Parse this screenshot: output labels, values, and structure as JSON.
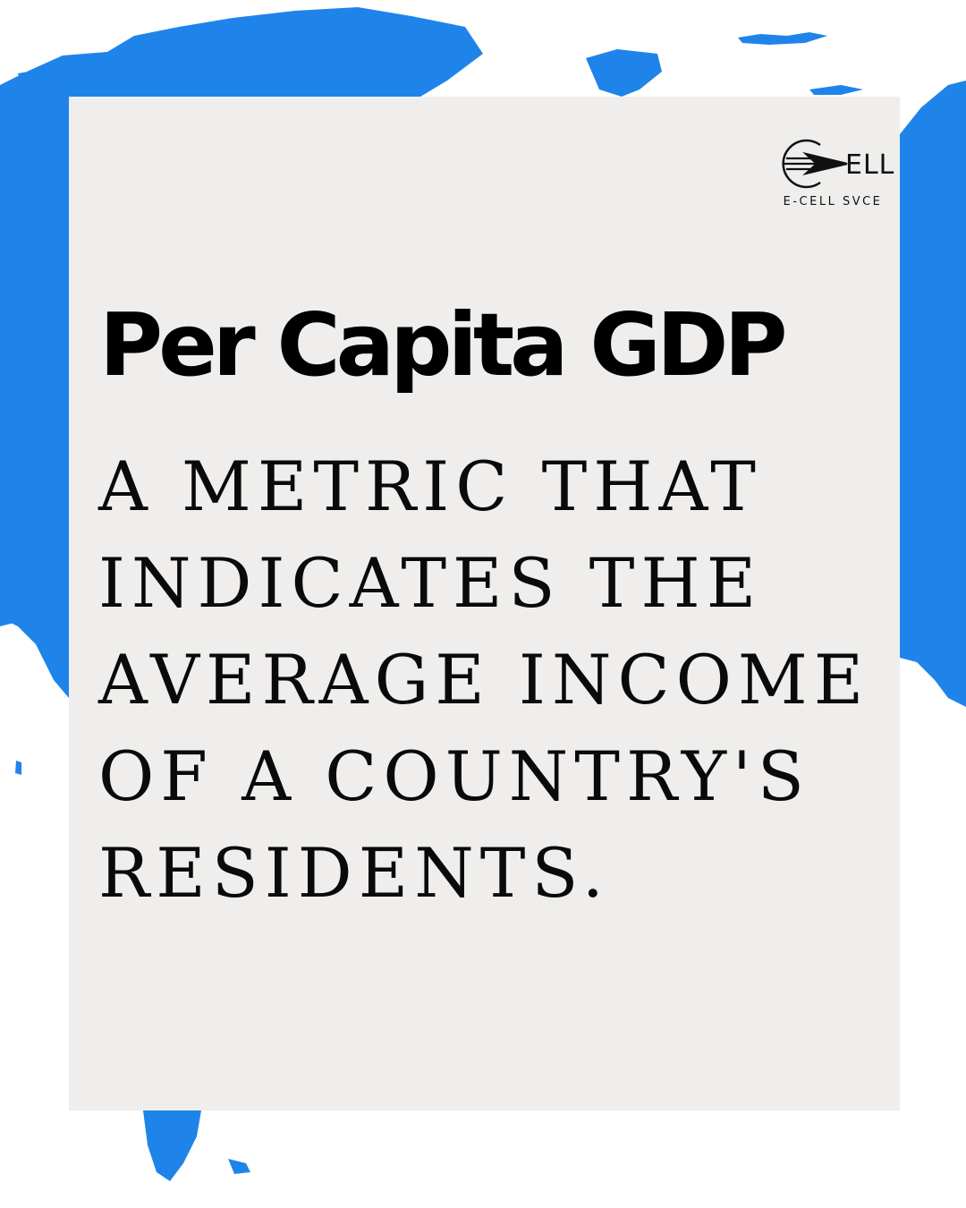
{
  "background": {
    "map_color": "#1f84ea",
    "card_color": "#efeeed"
  },
  "logo": {
    "mark_text": "ELL",
    "caption": "E-CELL SVCE",
    "icon": "paper-plane-icon"
  },
  "title": "Per Capita GDP",
  "description_lines": [
    "A METRIC THAT",
    "INDICATES THE",
    "AVERAGE INCOME",
    "OF A COUNTRY'S",
    "RESIDENTS."
  ]
}
